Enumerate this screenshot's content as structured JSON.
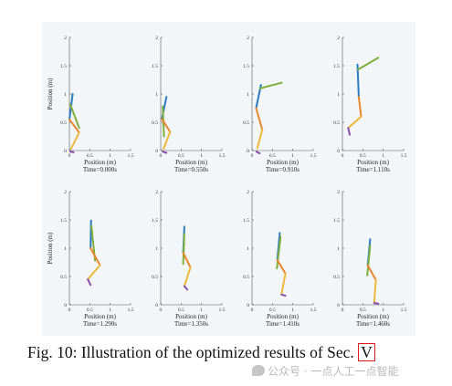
{
  "figure": {
    "caption_prefix": "Fig. 10: Illustration of the optimized results of Sec. ",
    "caption_ref": "V",
    "watermark": "公众号 · 一点人工一点智能",
    "watermark_icon": "wechat-icon"
  },
  "chart_data": [
    {
      "type": "line",
      "title": "Time=0.000s",
      "xlabel": "Position (m)",
      "ylabel": "Position (m)",
      "xlim": [
        0,
        1.5
      ],
      "ylim": [
        0,
        2
      ],
      "xticks": [
        "0",
        "0.5",
        "1",
        "1.5"
      ],
      "yticks": [
        "0",
        "0.5",
        "1",
        "1.5",
        "2"
      ],
      "grid": false,
      "series": [
        {
          "color": "#2a7bbf",
          "points": [
            [
              0.0,
              0.55
            ],
            [
              0.08,
              1.0
            ]
          ]
        },
        {
          "color": "#7fae3c",
          "points": [
            [
              0.02,
              0.82
            ],
            [
              0.24,
              0.4
            ]
          ]
        },
        {
          "color": "#e8862b",
          "points": [
            [
              0.0,
              0.55
            ],
            [
              0.24,
              0.32
            ]
          ]
        },
        {
          "color": "#edb73a",
          "points": [
            [
              0.24,
              0.32
            ],
            [
              0.04,
              0.03
            ]
          ]
        },
        {
          "color": "#8a4ea8",
          "points": [
            [
              0.02,
              -0.02
            ],
            [
              0.1,
              -0.03
            ]
          ]
        }
      ]
    },
    {
      "type": "line",
      "title": "Time=0.550s",
      "xlabel": "Position (m)",
      "ylabel": "",
      "xlim": [
        0,
        1.5
      ],
      "ylim": [
        0,
        2
      ],
      "xticks": [
        "0",
        "0.5",
        "1",
        "1.5"
      ],
      "yticks": [
        "0",
        "0.5",
        "1",
        "1.5",
        "2"
      ],
      "grid": false,
      "series": [
        {
          "color": "#2a7bbf",
          "points": [
            [
              0.03,
              0.56
            ],
            [
              0.14,
              0.95
            ]
          ]
        },
        {
          "color": "#7fae3c",
          "points": [
            [
              0.05,
              0.78
            ],
            [
              0.08,
              0.25
            ]
          ]
        },
        {
          "color": "#e8862b",
          "points": [
            [
              0.03,
              0.56
            ],
            [
              0.23,
              0.33
            ]
          ]
        },
        {
          "color": "#edb73a",
          "points": [
            [
              0.23,
              0.33
            ],
            [
              0.07,
              0.03
            ]
          ]
        },
        {
          "color": "#8a4ea8",
          "points": [
            [
              0.05,
              -0.02
            ],
            [
              0.14,
              -0.04
            ]
          ]
        }
      ]
    },
    {
      "type": "line",
      "title": "Time=0.910s",
      "xlabel": "Position (m)",
      "ylabel": "",
      "xlim": [
        0,
        1.5
      ],
      "ylim": [
        0,
        2
      ],
      "xticks": [
        "0",
        "0.5",
        "1",
        "1.5"
      ],
      "yticks": [
        "0",
        "0.5",
        "1",
        "1.5",
        "2"
      ],
      "grid": false,
      "series": [
        {
          "color": "#2a7bbf",
          "points": [
            [
              0.1,
              0.75
            ],
            [
              0.22,
              1.16
            ]
          ]
        },
        {
          "color": "#7fae3c",
          "points": [
            [
              0.2,
              1.1
            ],
            [
              0.73,
              1.2
            ]
          ]
        },
        {
          "color": "#e8862b",
          "points": [
            [
              0.1,
              0.75
            ],
            [
              0.25,
              0.37
            ]
          ]
        },
        {
          "color": "#edb73a",
          "points": [
            [
              0.25,
              0.37
            ],
            [
              0.13,
              0.04
            ]
          ]
        },
        {
          "color": "#8a4ea8",
          "points": [
            [
              0.11,
              -0.02
            ],
            [
              0.19,
              -0.05
            ]
          ]
        }
      ]
    },
    {
      "type": "line",
      "title": "Time=1.110s",
      "xlabel": "Position (m)",
      "ylabel": "",
      "xlim": [
        0,
        1.5
      ],
      "ylim": [
        0,
        2
      ],
      "xticks": [
        "0",
        "0.5",
        "1",
        "1.5"
      ],
      "yticks": [
        "0",
        "0.5",
        "1",
        "1.5",
        "2"
      ],
      "grid": false,
      "series": [
        {
          "color": "#2a7bbf",
          "points": [
            [
              0.37,
              1.52
            ],
            [
              0.4,
              0.95
            ]
          ]
        },
        {
          "color": "#7fae3c",
          "points": [
            [
              0.38,
              1.43
            ],
            [
              0.88,
              1.64
            ]
          ]
        },
        {
          "color": "#e8862b",
          "points": [
            [
              0.4,
              0.95
            ],
            [
              0.46,
              0.6
            ]
          ]
        },
        {
          "color": "#edb73a",
          "points": [
            [
              0.46,
              0.6
            ],
            [
              0.14,
              0.4
            ]
          ]
        },
        {
          "color": "#8a4ea8",
          "points": [
            [
              0.14,
              0.4
            ],
            [
              0.18,
              0.28
            ]
          ]
        }
      ]
    },
    {
      "type": "line",
      "title": "Time=1.290s",
      "xlabel": "Position (m)",
      "ylabel": "Position (m)",
      "xlim": [
        0,
        1.5
      ],
      "ylim": [
        0,
        2
      ],
      "xticks": [
        "0",
        "0.5",
        "1",
        "1.5"
      ],
      "yticks": [
        "0",
        "0.5",
        "1",
        "1.5",
        "2"
      ],
      "grid": false,
      "series": [
        {
          "color": "#2a7bbf",
          "points": [
            [
              0.53,
              1.49
            ],
            [
              0.52,
              1.0
            ]
          ]
        },
        {
          "color": "#7fae3c",
          "points": [
            [
              0.54,
              1.39
            ],
            [
              0.63,
              0.78
            ]
          ]
        },
        {
          "color": "#e8862b",
          "points": [
            [
              0.52,
              1.0
            ],
            [
              0.75,
              0.7
            ]
          ]
        },
        {
          "color": "#edb73a",
          "points": [
            [
              0.75,
              0.7
            ],
            [
              0.45,
              0.45
            ]
          ]
        },
        {
          "color": "#8a4ea8",
          "points": [
            [
              0.45,
              0.45
            ],
            [
              0.52,
              0.35
            ]
          ]
        }
      ]
    },
    {
      "type": "line",
      "title": "Time=1.350s",
      "xlabel": "Position (m)",
      "ylabel": "",
      "xlim": [
        0,
        1.5
      ],
      "ylim": [
        0,
        2
      ],
      "xticks": [
        "0",
        "0.5",
        "1",
        "1.5"
      ],
      "yticks": [
        "0",
        "0.5",
        "1",
        "1.5",
        "2"
      ],
      "grid": false,
      "series": [
        {
          "color": "#2a7bbf",
          "points": [
            [
              0.58,
              1.38
            ],
            [
              0.55,
              0.92
            ]
          ]
        },
        {
          "color": "#7fae3c",
          "points": [
            [
              0.58,
              1.25
            ],
            [
              0.55,
              0.72
            ]
          ]
        },
        {
          "color": "#e8862b",
          "points": [
            [
              0.55,
              0.92
            ],
            [
              0.73,
              0.66
            ]
          ]
        },
        {
          "color": "#edb73a",
          "points": [
            [
              0.73,
              0.66
            ],
            [
              0.58,
              0.33
            ]
          ]
        },
        {
          "color": "#8a4ea8",
          "points": [
            [
              0.58,
              0.33
            ],
            [
              0.65,
              0.27
            ]
          ]
        }
      ]
    },
    {
      "type": "line",
      "title": "Time=1.410s",
      "xlabel": "Position (m)",
      "ylabel": "",
      "xlim": [
        0,
        1.5
      ],
      "ylim": [
        0,
        2
      ],
      "xticks": [
        "0",
        "0.5",
        "1",
        "1.5"
      ],
      "yticks": [
        "0",
        "0.5",
        "1",
        "1.5",
        "2"
      ],
      "grid": false,
      "series": [
        {
          "color": "#2a7bbf",
          "points": [
            [
              0.68,
              1.27
            ],
            [
              0.62,
              0.79
            ]
          ]
        },
        {
          "color": "#7fae3c",
          "points": [
            [
              0.7,
              1.2
            ],
            [
              0.61,
              0.64
            ]
          ]
        },
        {
          "color": "#e8862b",
          "points": [
            [
              0.62,
              0.79
            ],
            [
              0.82,
              0.55
            ]
          ]
        },
        {
          "color": "#edb73a",
          "points": [
            [
              0.82,
              0.55
            ],
            [
              0.72,
              0.18
            ]
          ]
        },
        {
          "color": "#8a4ea8",
          "points": [
            [
              0.72,
              0.18
            ],
            [
              0.82,
              0.16
            ]
          ]
        }
      ]
    },
    {
      "type": "line",
      "title": "Time=1.460s",
      "xlabel": "Position (m)",
      "ylabel": "",
      "xlim": [
        0,
        1.5
      ],
      "ylim": [
        0,
        2
      ],
      "xticks": [
        "0",
        "0.5",
        "1",
        "1.5"
      ],
      "yticks": [
        "0",
        "0.5",
        "1",
        "1.5",
        "2"
      ],
      "grid": false,
      "series": [
        {
          "color": "#2a7bbf",
          "points": [
            [
              0.68,
              1.16
            ],
            [
              0.62,
              0.7
            ]
          ]
        },
        {
          "color": "#7fae3c",
          "points": [
            [
              0.68,
              1.05
            ],
            [
              0.61,
              0.52
            ]
          ]
        },
        {
          "color": "#e8862b",
          "points": [
            [
              0.62,
              0.7
            ],
            [
              0.82,
              0.44
            ]
          ]
        },
        {
          "color": "#edb73a",
          "points": [
            [
              0.82,
              0.44
            ],
            [
              0.78,
              0.03
            ]
          ]
        },
        {
          "color": "#8a4ea8",
          "points": [
            [
              0.78,
              0.03
            ],
            [
              0.88,
              0.02
            ]
          ]
        }
      ]
    }
  ]
}
